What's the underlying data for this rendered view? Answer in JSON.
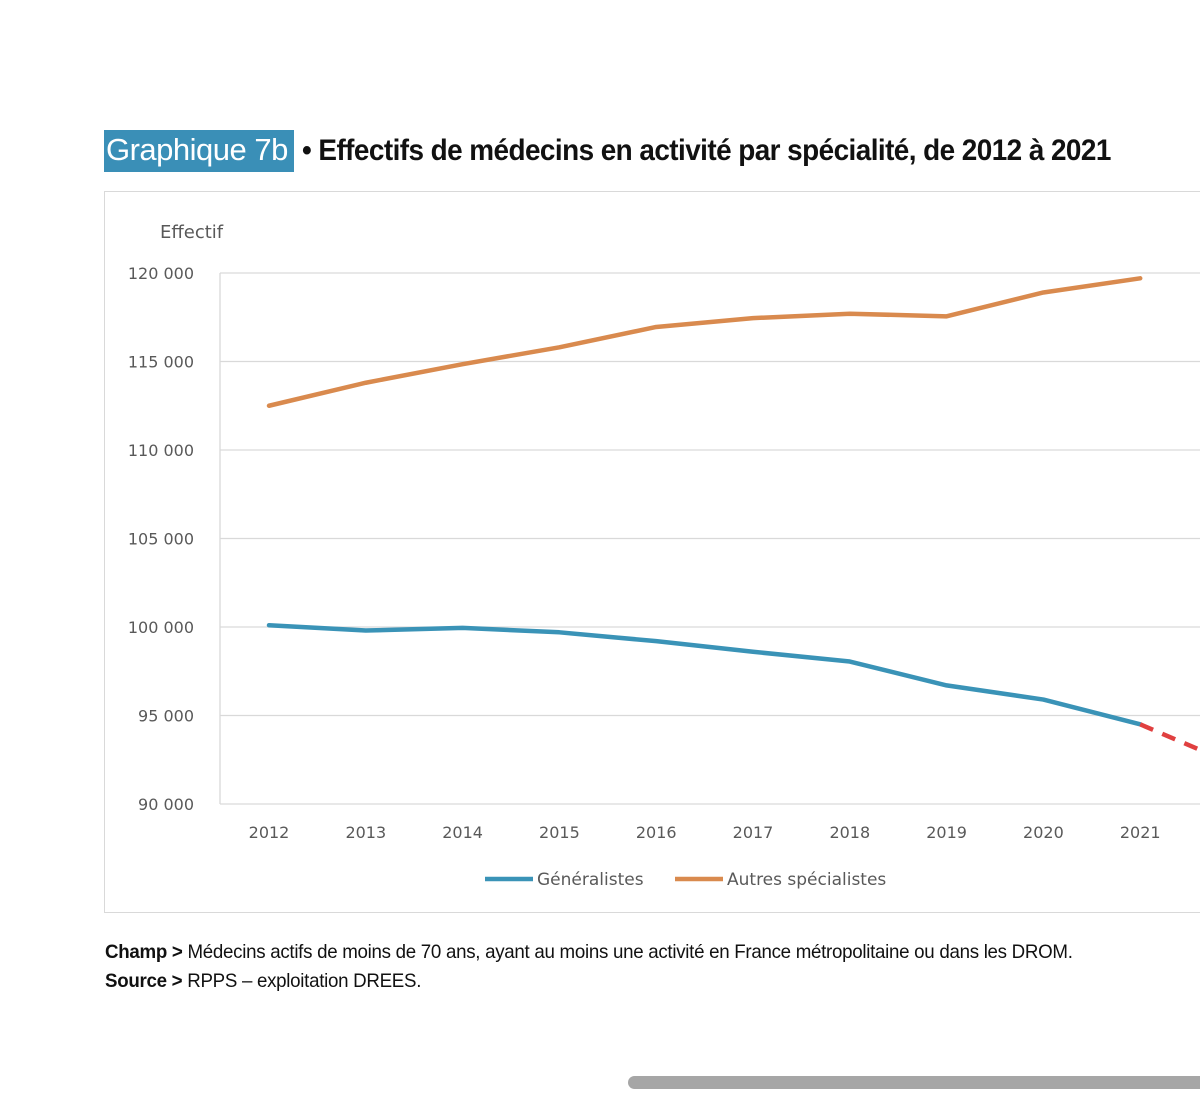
{
  "title": {
    "badge": "Graphique 7b",
    "text": "• Effectifs de médecins en activité par spécialité, de 2012 à 2021"
  },
  "chart_data": {
    "type": "line",
    "ylabel": "Effectif",
    "ylim": [
      90000,
      120000
    ],
    "yticks": [
      "120 000",
      "115 000",
      "110 000",
      "105 000",
      "100 000",
      "95 000",
      "90 000"
    ],
    "ytick_values": [
      120000,
      115000,
      110000,
      105000,
      100000,
      95000,
      90000
    ],
    "categories": [
      "2012",
      "2013",
      "2014",
      "2015",
      "2016",
      "2017",
      "2018",
      "2019",
      "2020",
      "2021"
    ],
    "series": [
      {
        "name": "Généralistes",
        "color": "#3a93b7",
        "values": [
          100100,
          99800,
          99950,
          99700,
          99200,
          98600,
          98050,
          96700,
          95900,
          94500
        ]
      },
      {
        "name": "Autres spécialistes",
        "color": "#d98a4e",
        "values": [
          112500,
          113800,
          114850,
          115800,
          116950,
          117450,
          117700,
          117550,
          118900,
          119700
        ]
      }
    ],
    "projection": {
      "color": "#e04040",
      "style": "dashed",
      "from": "2021"
    },
    "grid": true,
    "legend": "bottom"
  },
  "notes": {
    "champ_label": "Champ >",
    "champ_text": " Médecins actifs de moins de 70 ans, ayant au moins une activité en France métropolitaine ou dans les DROM.",
    "source_label": "Source >",
    "source_text": " RPPS – exploitation DREES."
  }
}
